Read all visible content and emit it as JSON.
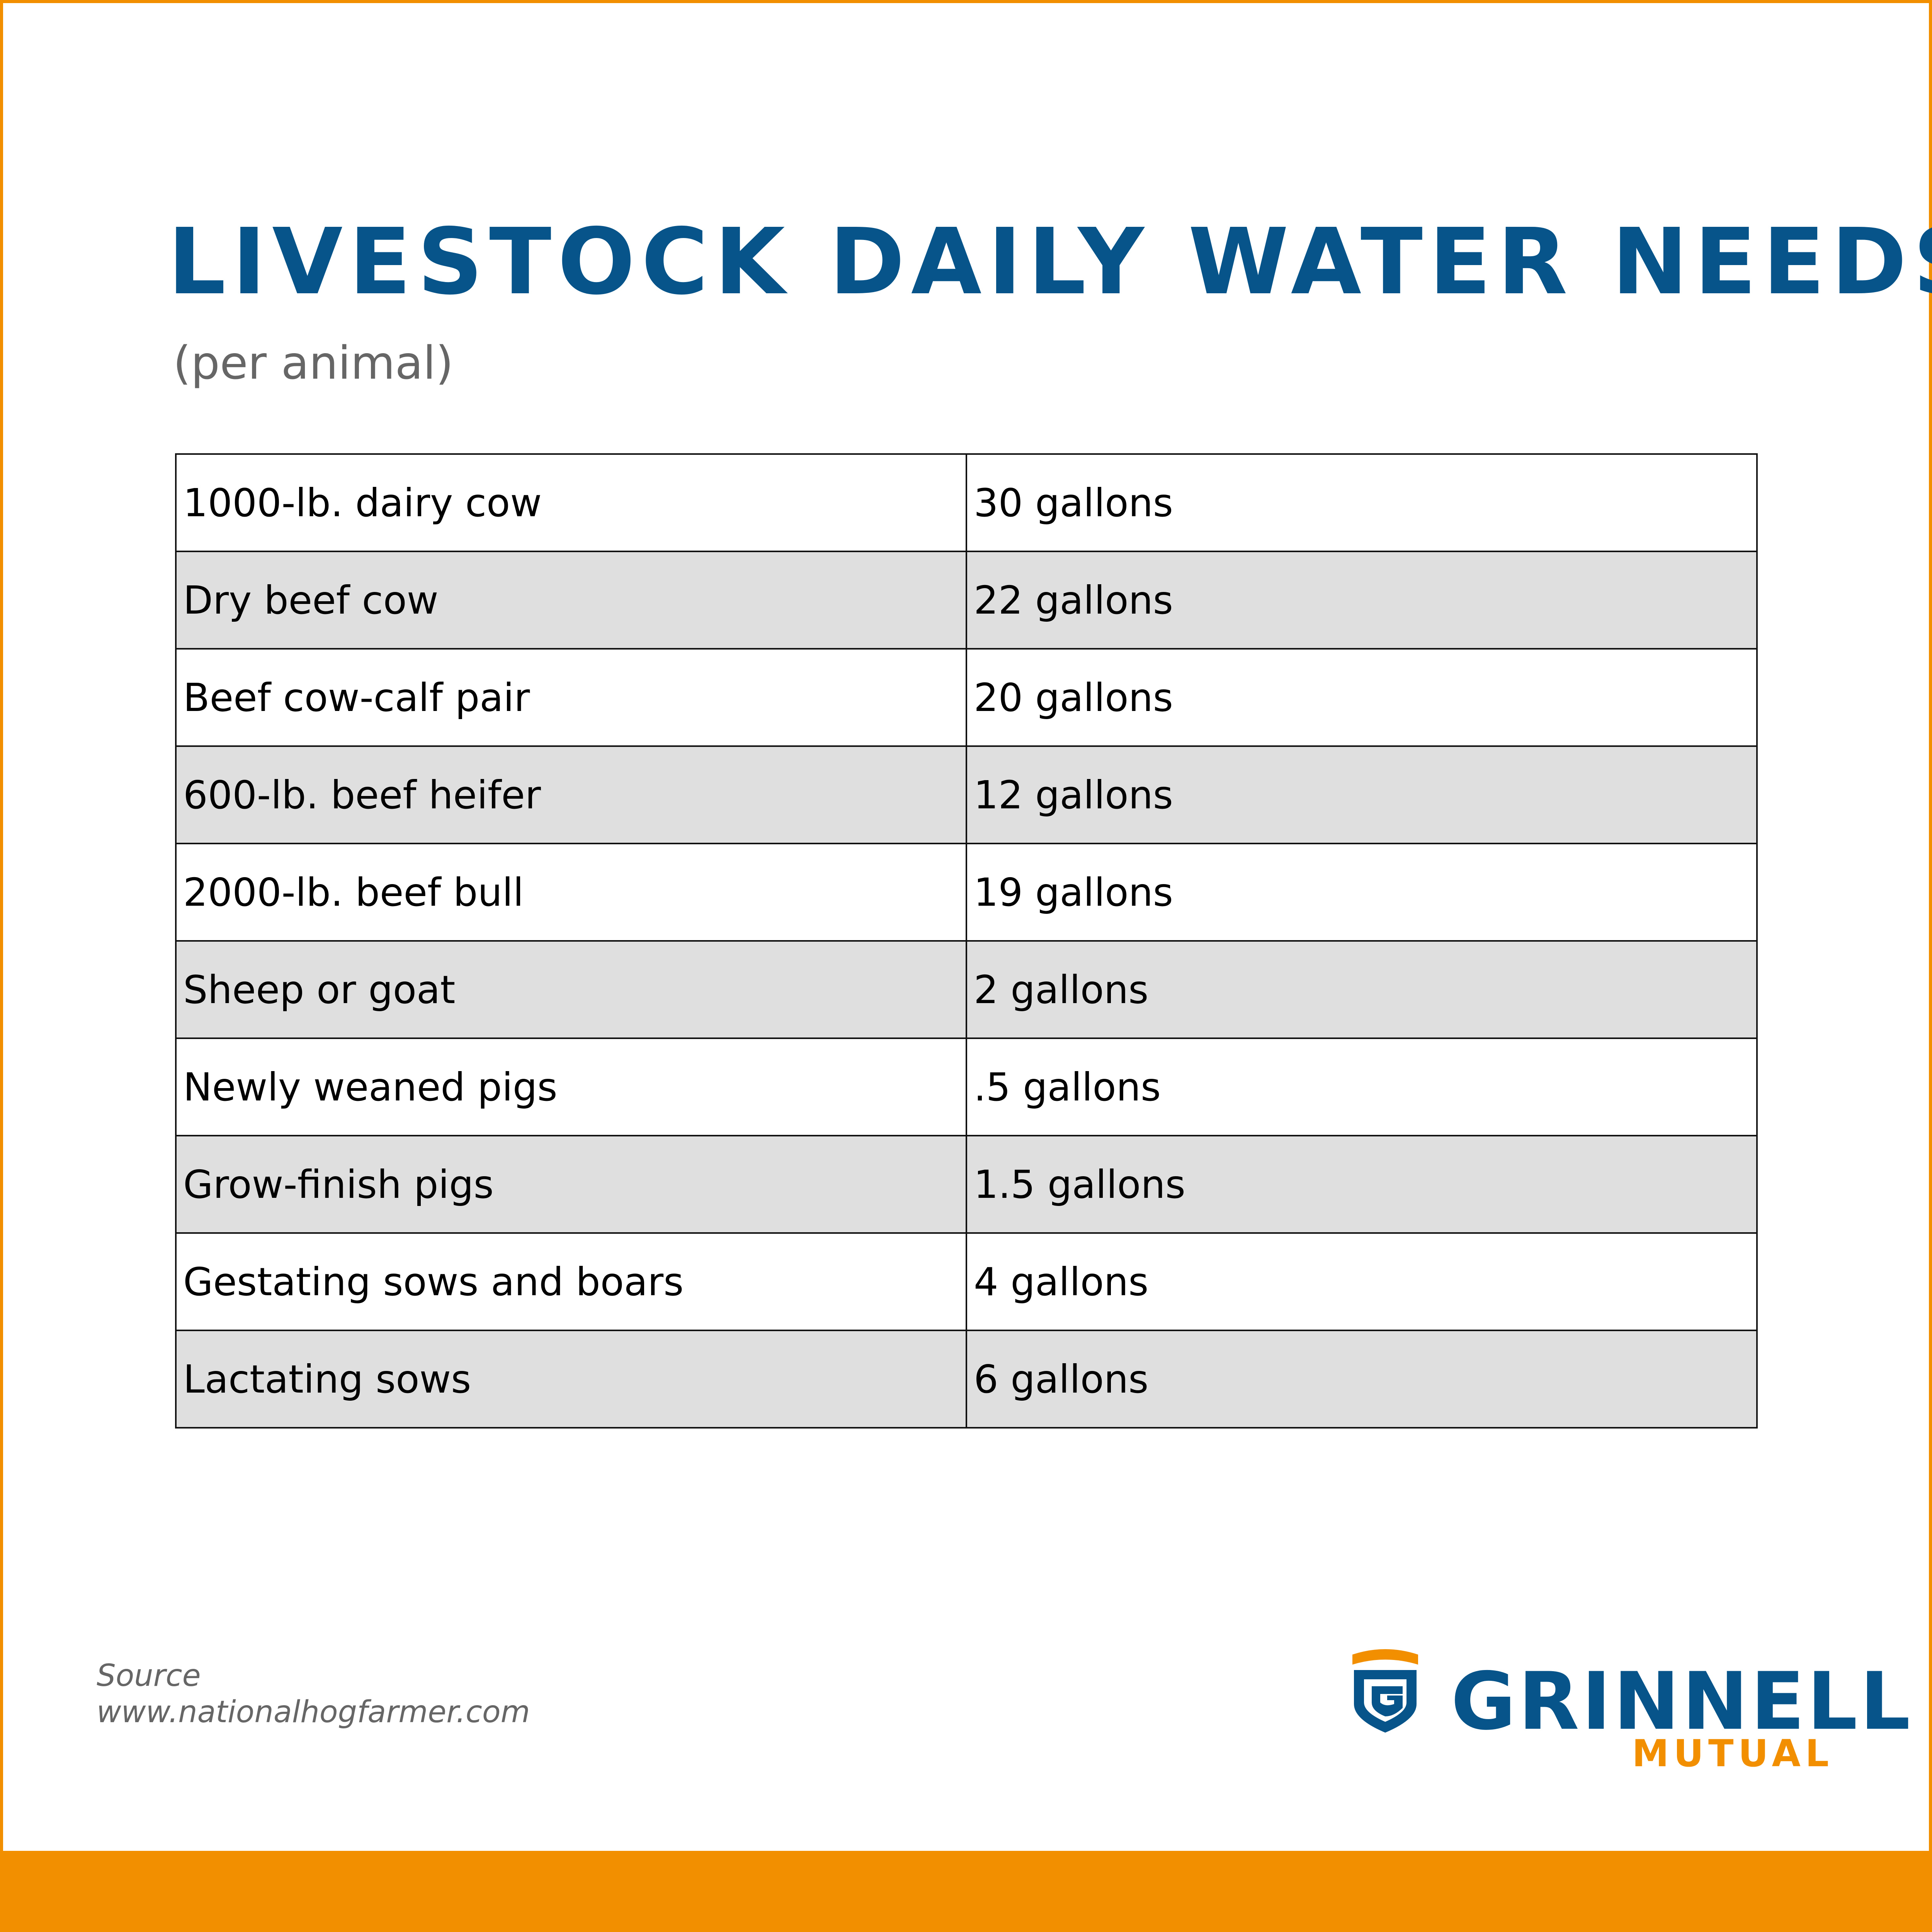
{
  "title": "LIVESTOCK DAILY WATER NEEDS",
  "subtitle": "(per animal)",
  "table": {
    "rows": [
      {
        "animal": "1000-lb. dairy cow",
        "water": "30 gallons"
      },
      {
        "animal": "Dry beef cow",
        "water": "22 gallons"
      },
      {
        "animal": "Beef cow-calf pair",
        "water": "20 gallons"
      },
      {
        "animal": "600-lb. beef heifer",
        "water": "12 gallons"
      },
      {
        "animal": "2000-lb. beef bull",
        "water": "19 gallons"
      },
      {
        "animal": "Sheep or goat",
        "water": "2 gallons"
      },
      {
        "animal": "Newly weaned pigs",
        "water": ".5 gallons"
      },
      {
        "animal": "Grow-finish pigs",
        "water": "1.5 gallons"
      },
      {
        "animal": "Gestating sows and boars",
        "water": "4 gallons"
      },
      {
        "animal": "Lactating sows",
        "water": "6 gallons"
      }
    ]
  },
  "source": {
    "label": "Source",
    "url": "www.nationalhogfarmer.com"
  },
  "logo": {
    "name": "GRINNELL",
    "sub": "MUTUAL",
    "icon": "shield-g-icon"
  },
  "colors": {
    "title_blue": "#07548a",
    "accent_orange": "#f18f00",
    "stripe_gray": "#dfdfdf"
  }
}
